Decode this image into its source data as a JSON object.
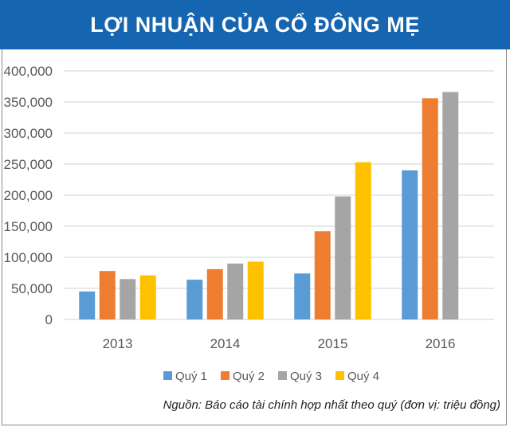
{
  "chart_data": {
    "type": "bar",
    "title": "LỢI NHUẬN CỦA CỔ ĐÔNG MẸ",
    "categories": [
      "2013",
      "2014",
      "2015",
      "2016"
    ],
    "series": [
      {
        "name": "Quý 1",
        "color": "#5b9bd5",
        "values": [
          45000,
          64000,
          74000,
          240000
        ]
      },
      {
        "name": "Quý 2",
        "color": "#ed7d31",
        "values": [
          78000,
          81000,
          142000,
          356000
        ]
      },
      {
        "name": "Quý 3",
        "color": "#a5a5a5",
        "values": [
          65000,
          90000,
          198000,
          366000
        ]
      },
      {
        "name": "Quý 4",
        "color": "#ffc000",
        "values": [
          71000,
          93000,
          253000,
          null
        ]
      }
    ],
    "ylim": [
      0,
      400000
    ],
    "yticks": [
      "0",
      "50,000",
      "100,000",
      "150,000",
      "200,000",
      "250,000",
      "300,000",
      "350,000",
      "400,000"
    ],
    "grid": true,
    "legend": "bottom",
    "source": "Nguồn: Báo cáo tài chính hợp nhất theo quý (đơn vị: triệu đồng)"
  }
}
